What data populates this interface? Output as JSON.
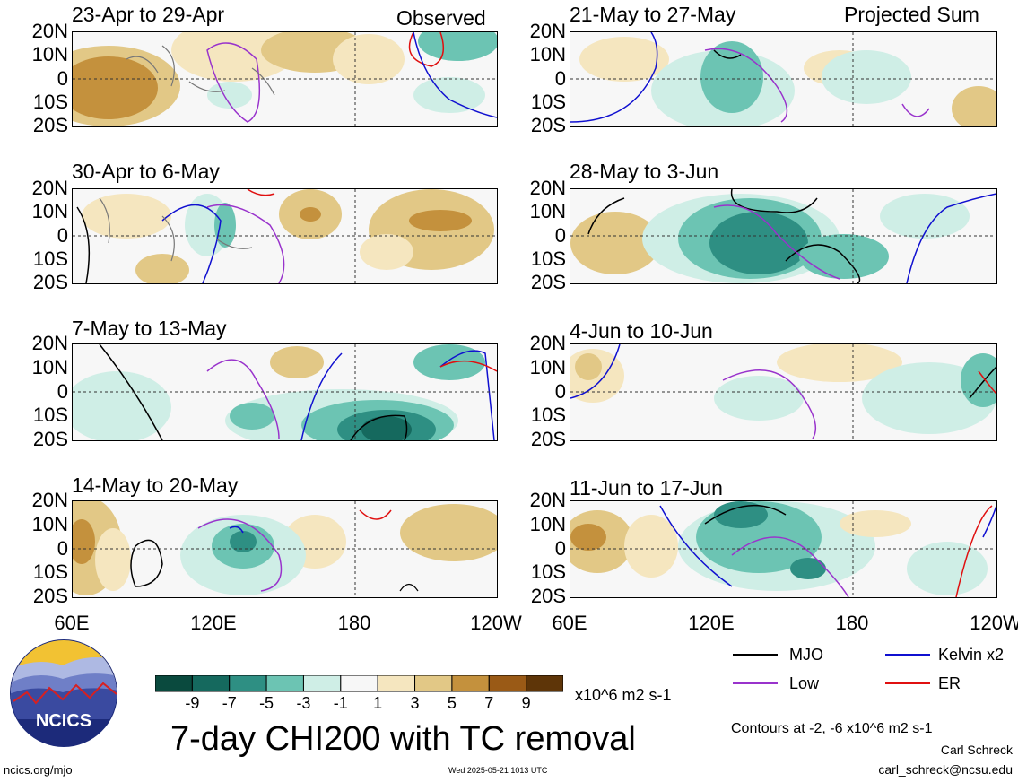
{
  "panels_left": [
    {
      "title": "23-Apr to 29-Apr",
      "tag": "Observed"
    },
    {
      "title": "30-Apr to 6-May",
      "tag": ""
    },
    {
      "title": "7-May to 13-May",
      "tag": ""
    },
    {
      "title": "14-May to 20-May",
      "tag": ""
    }
  ],
  "panels_right": [
    {
      "title": "21-May to 27-May",
      "tag": "Projected Sum"
    },
    {
      "title": "28-May to 3-Jun",
      "tag": ""
    },
    {
      "title": "4-Jun to 10-Jun",
      "tag": ""
    },
    {
      "title": "11-Jun to 17-Jun",
      "tag": ""
    }
  ],
  "lat_labels": [
    "20N",
    "10N",
    "0",
    "10S",
    "20S"
  ],
  "lon_labels": [
    "60E",
    "120E",
    "180",
    "120W"
  ],
  "legend": {
    "mjo": "MJO",
    "kelvin": "Kelvin x2",
    "low": "Low",
    "er": "ER",
    "colors": {
      "mjo": "#000000",
      "kelvin": "#1010d0",
      "low": "#9933cc",
      "er": "#e01010"
    }
  },
  "colorbar": {
    "labels": [
      "-9",
      "-7",
      "-5",
      "-3",
      "-1",
      "1",
      "3",
      "5",
      "7",
      "9"
    ],
    "units": "x10^6 m2 s-1",
    "colors": [
      "#0a4a3e",
      "#15695e",
      "#2e8f83",
      "#6cc4b3",
      "#cfeee6",
      "#f7f7f7",
      "#f5e6bf",
      "#e2c886",
      "#c4913d",
      "#9a5a16",
      "#5e3508"
    ]
  },
  "main_title": "7-day CHI200 with TC removal",
  "contours_note": "Contours at -2, -6 x10^6 m2 s-1",
  "author": "Carl Schreck",
  "email": "carl_schreck@ncsu.edu",
  "site": "ncics.org/mjo",
  "timestamp": "Wed 2025-05-21 1013 UTC",
  "logo_text": "NCICS"
}
